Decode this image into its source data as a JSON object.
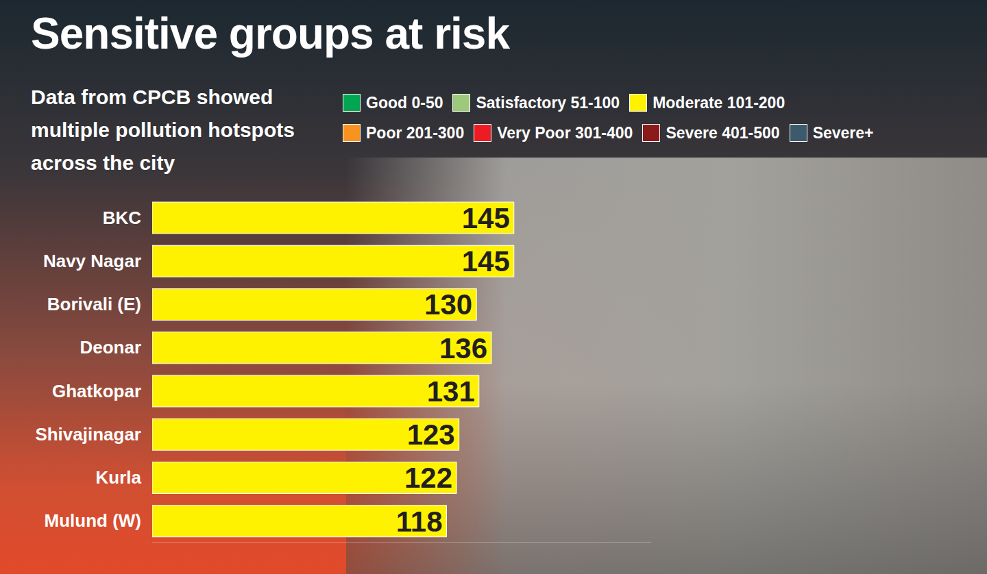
{
  "chart_data": {
    "type": "bar",
    "orientation": "horizontal",
    "title": "Sensitive groups at risk",
    "subtitle": "Data from CPCB showed multiple pollution hotspots across the city",
    "categories": [
      "BKC",
      "Navy Nagar",
      "Borivali (E)",
      "Deonar",
      "Ghatkopar",
      "Shivajinagar",
      "Kurla",
      "Mulund (W)"
    ],
    "values": [
      145,
      145,
      130,
      136,
      131,
      123,
      122,
      118
    ],
    "color": "#fff200",
    "xlim": [
      0,
      200
    ],
    "xticks": [],
    "tick_labels": "y",
    "data_labels": true,
    "grid": false,
    "aqi_legend": [
      {
        "label": "Good 0-50",
        "color": "#00a651"
      },
      {
        "label": "Satisfactory 51-100",
        "color": "#9dc97b"
      },
      {
        "label": "Moderate 101-200",
        "color": "#fff200"
      },
      {
        "label": "Poor 201-300",
        "color": "#f7931e"
      },
      {
        "label": "Very Poor 301-400",
        "color": "#ed1c24"
      },
      {
        "label": "Severe 401-500",
        "color": "#8b1a1a"
      },
      {
        "label": "Severe+",
        "color": "#3d5a6c"
      }
    ]
  }
}
